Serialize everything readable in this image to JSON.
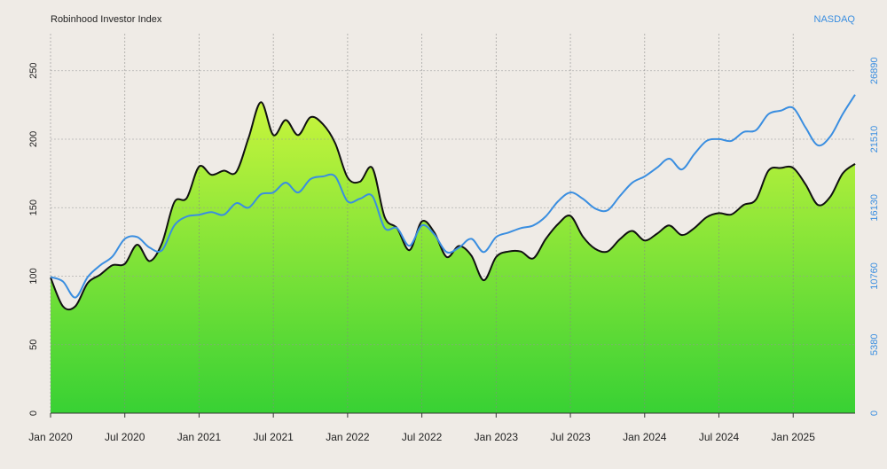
{
  "chart_data": {
    "type": "line",
    "title": "Robinhood Investor Index",
    "y2_label": "NASDAQ",
    "x": [
      "2020-01",
      "2020-02",
      "2020-03",
      "2020-04",
      "2020-05",
      "2020-06",
      "2020-07",
      "2020-08",
      "2020-09",
      "2020-10",
      "2020-11",
      "2020-12",
      "2021-01",
      "2021-02",
      "2021-03",
      "2021-04",
      "2021-05",
      "2021-06",
      "2021-07",
      "2021-08",
      "2021-09",
      "2021-10",
      "2021-11",
      "2021-12",
      "2022-01",
      "2022-02",
      "2022-03",
      "2022-04",
      "2022-05",
      "2022-06",
      "2022-07",
      "2022-08",
      "2022-09",
      "2022-10",
      "2022-11",
      "2022-12",
      "2023-01",
      "2023-02",
      "2023-03",
      "2023-04",
      "2023-05",
      "2023-06",
      "2023-07",
      "2023-08",
      "2023-09",
      "2023-10",
      "2023-11",
      "2023-12",
      "2024-01",
      "2024-02",
      "2024-03",
      "2024-04",
      "2024-05",
      "2024-06",
      "2024-07",
      "2024-08",
      "2024-09",
      "2024-10",
      "2024-11",
      "2024-12",
      "2025-01",
      "2025-02",
      "2025-03",
      "2025-04",
      "2025-05",
      "2025-06"
    ],
    "series": [
      {
        "name": "Robinhood Investor Index",
        "color": "#111111",
        "fill_top": "#c9f53c",
        "fill_bottom": "#38d134",
        "values": [
          99,
          78,
          78,
          95,
          101,
          108,
          109,
          123,
          111,
          124,
          154,
          157,
          180,
          174,
          177,
          176,
          201,
          227,
          203,
          214,
          203,
          216,
          211,
          197,
          172,
          169,
          179,
          143,
          135,
          119,
          140,
          132,
          114,
          122,
          115,
          97,
          114,
          118,
          118,
          113,
          127,
          138,
          144,
          129,
          120,
          118,
          127,
          133,
          126,
          131,
          137,
          130,
          135,
          143,
          146,
          145,
          152,
          156,
          177,
          179,
          179,
          167,
          152,
          158,
          175,
          182
        ]
      },
      {
        "name": "NASDAQ",
        "color": "#3a8ee0",
        "axis": "y2",
        "values": [
          10690,
          10340,
          9080,
          10690,
          11600,
          12300,
          13690,
          13830,
          13000,
          12790,
          14740,
          15440,
          15580,
          15790,
          15580,
          16490,
          16140,
          17190,
          17330,
          18100,
          17330,
          18380,
          18590,
          18590,
          16630,
          16840,
          17050,
          14530,
          14530,
          13140,
          14740,
          14040,
          12650,
          13000,
          13690,
          12650,
          13830,
          14180,
          14530,
          14740,
          15440,
          16630,
          17330,
          16840,
          16070,
          15930,
          17050,
          18100,
          18590,
          19280,
          19980,
          19140,
          20330,
          21380,
          21520,
          21380,
          22080,
          22220,
          23480,
          23760,
          23970,
          22430,
          21030,
          21730,
          23480,
          25010
        ]
      }
    ],
    "xlim": [
      "2020-01",
      "2025-06"
    ],
    "xticks": [
      {
        "value": "2020-01",
        "label": "Jan 2020"
      },
      {
        "value": "2020-07",
        "label": "Jul 2020"
      },
      {
        "value": "2021-01",
        "label": "Jan 2021"
      },
      {
        "value": "2021-07",
        "label": "Jul 2021"
      },
      {
        "value": "2022-01",
        "label": "Jan 2022"
      },
      {
        "value": "2022-07",
        "label": "Jul 2022"
      },
      {
        "value": "2023-01",
        "label": "Jan 2023"
      },
      {
        "value": "2023-07",
        "label": "Jul 2023"
      },
      {
        "value": "2024-01",
        "label": "Jan 2024"
      },
      {
        "value": "2024-07",
        "label": "Jul 2024"
      },
      {
        "value": "2025-01",
        "label": "Jan 2025"
      }
    ],
    "ylim": [
      0,
      277
    ],
    "yticks": [
      0,
      50,
      100,
      150,
      200,
      250
    ],
    "y2lim": [
      0,
      29800
    ],
    "y2ticks": [
      0,
      5380,
      10760,
      16130,
      21510,
      26890
    ],
    "grid": true
  }
}
